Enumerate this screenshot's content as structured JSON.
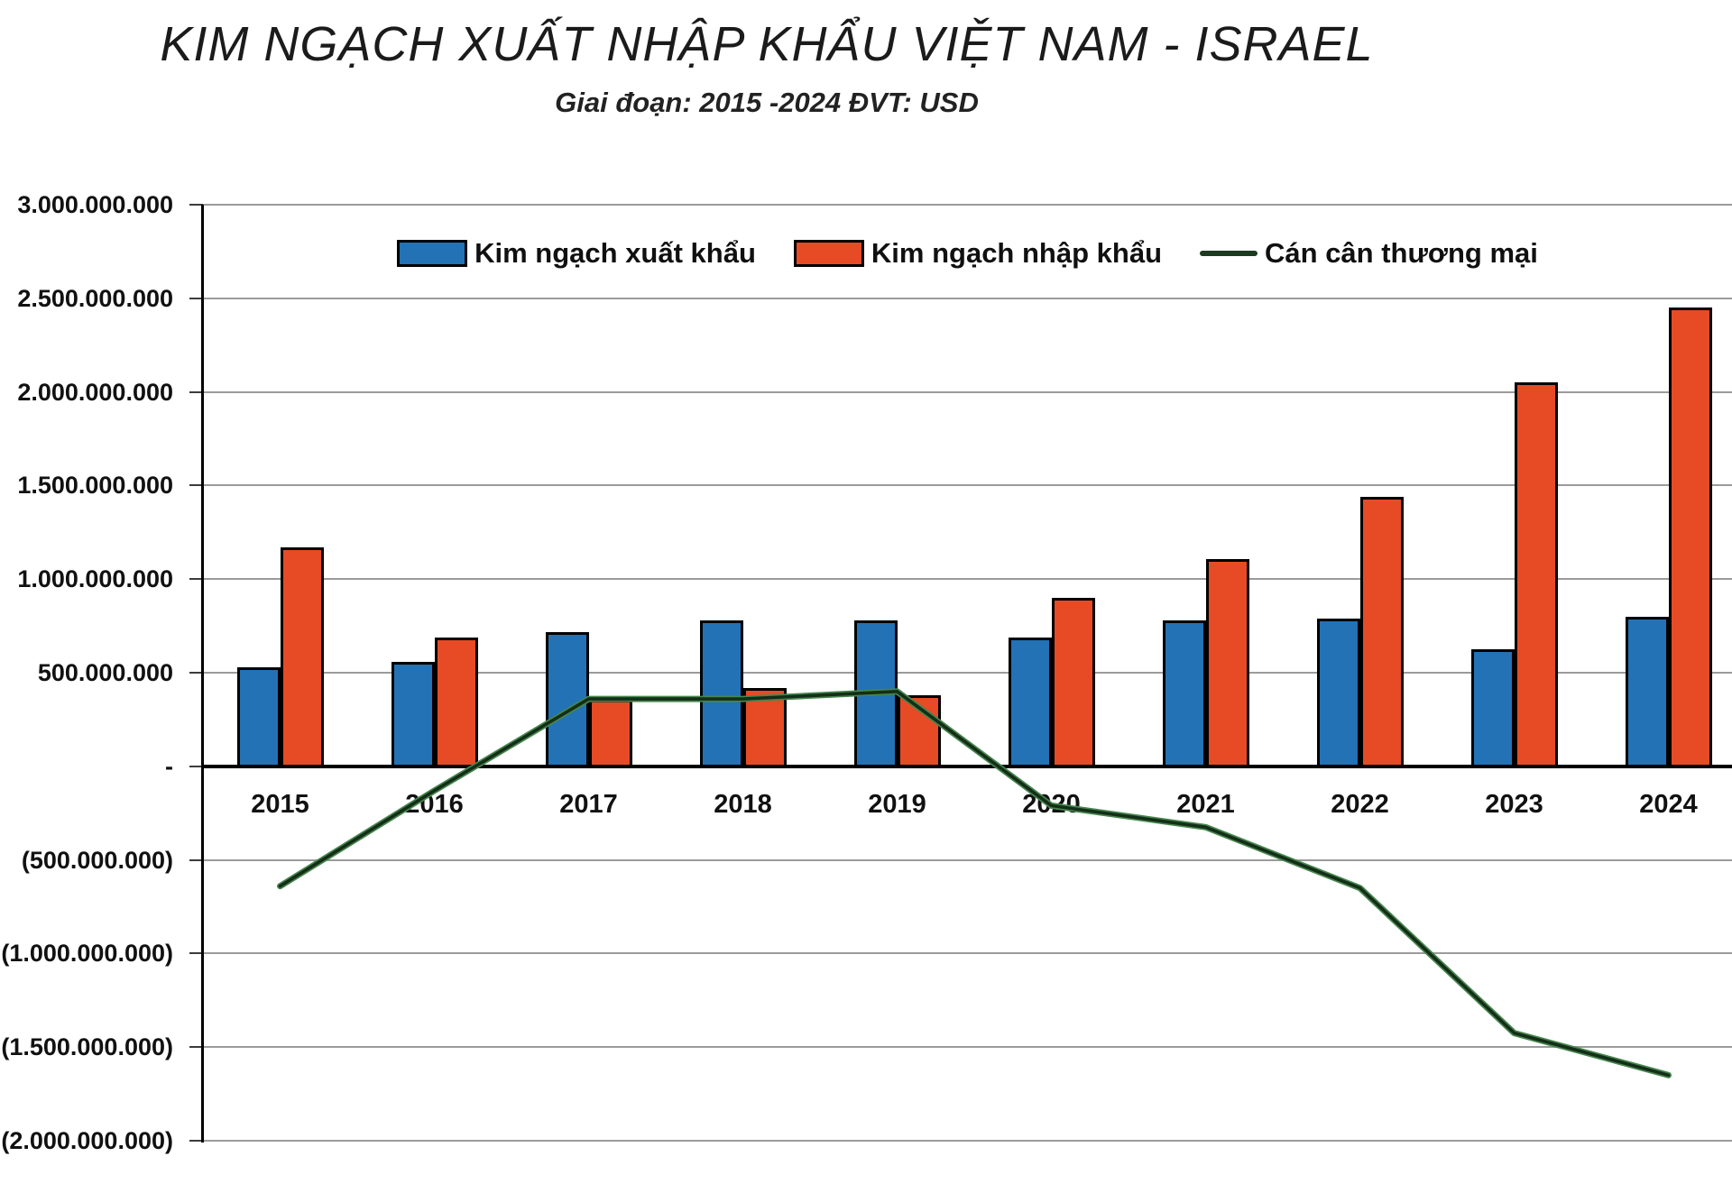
{
  "page": {
    "background": "#ffffff"
  },
  "legend": {
    "items": [
      {
        "label": "Kim ngạch xuất khẩu",
        "swatch": "rect",
        "color": "#2272B5"
      },
      {
        "label": "Kim ngạch nhập khẩu",
        "swatch": "rect",
        "color": "#E64B25"
      },
      {
        "label": "Cán cân thương mại",
        "swatch": "line",
        "color": "#1C3B21"
      }
    ]
  },
  "chart_data": {
    "type": "bar",
    "title": "KIM NGẠCH XUẤT NHẬP KHẨU VIỆT NAM - ISRAEL",
    "subtitle": "Giai đoạn: 2015 -2024  ĐVT: USD",
    "categories": [
      "2015",
      "2016",
      "2017",
      "2018",
      "2019",
      "2020",
      "2021",
      "2022",
      "2023",
      "2024"
    ],
    "series": [
      {
        "name": "Kim ngạch xuất khẩu",
        "type": "bar",
        "color": "#2272B5",
        "values": [
          530000000,
          560000000,
          715000000,
          780000000,
          780000000,
          690000000,
          780000000,
          790000000,
          625000000,
          800000000
        ]
      },
      {
        "name": "Kim ngạch nhập khẩu",
        "type": "bar",
        "color": "#E64B25",
        "values": [
          1170000000,
          690000000,
          355000000,
          420000000,
          380000000,
          900000000,
          1105000000,
          1440000000,
          2050000000,
          2450000000
        ]
      },
      {
        "name": "Cán cân thương mại",
        "type": "line",
        "color": "#1C3B21",
        "values": [
          -640000000,
          -130000000,
          360000000,
          360000000,
          400000000,
          -210000000,
          -325000000,
          -650000000,
          -1425000000,
          -1650000000
        ]
      }
    ],
    "ylim": [
      -2000000000,
      3000000000
    ],
    "ytick_step": 500000000,
    "ytick_labels": [
      "3.000.000.000",
      "2.500.000.000",
      "2.000.000.000",
      "1.500.000.000",
      "1.000.000.000",
      "500.000.000",
      "-",
      "(500.000.000)",
      "(1.000.000.000)",
      "(1.500.000.000)",
      "(2.000.000.000)"
    ],
    "grid": true,
    "legend_position": "top",
    "grid_color": "#9B9B9B",
    "axis_color": "#000000"
  }
}
